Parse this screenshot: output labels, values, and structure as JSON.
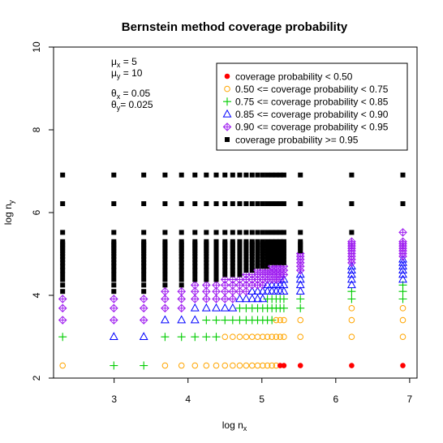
{
  "chart_data": {
    "type": "scatter",
    "title": "Bernstein method coverage probability",
    "xlabel": {
      "main": "log  n",
      "sub": "x"
    },
    "ylabel": {
      "main": "log  n",
      "sub": "y"
    },
    "xlim": [
      2.18,
      7.1
    ],
    "ylim": [
      2.0,
      10.0
    ],
    "xticks": [
      3,
      4,
      5,
      6,
      7
    ],
    "yticks": [
      2,
      4,
      6,
      8,
      10
    ],
    "annotations": [
      {
        "sym": "μ",
        "sub": "x",
        "rest": "  = 5"
      },
      {
        "sym": "μ",
        "sub": "y",
        "rest": "  = 10"
      },
      {
        "sym": "θ",
        "sub": "x",
        "rest": " = 0.05"
      },
      {
        "sym": "θ",
        "sub": "y",
        "rest": "= 0.025"
      }
    ],
    "legend_position": "top-right",
    "categories": [
      {
        "key": "lt050",
        "label": "coverage probability < 0.50",
        "marker": "filled-circle",
        "color": "#ff0000"
      },
      {
        "key": "c050",
        "label": "0.50 <= coverage probability < 0.75",
        "marker": "open-circle",
        "color": "#ffa500"
      },
      {
        "key": "c075",
        "label": "0.75 <= coverage probability < 0.85",
        "marker": "plus",
        "color": "#00cc00"
      },
      {
        "key": "c085",
        "label": "0.85 <= coverage probability < 0.90",
        "marker": "triangle",
        "color": "#0000ff"
      },
      {
        "key": "c090",
        "label": "0.90 <= coverage probability < 0.95",
        "marker": "diamond-plus",
        "color": "#a020f0"
      },
      {
        "key": "ge095",
        "label": "coverage probability >= 0.95",
        "marker": "filled-square",
        "color": "#000000"
      }
    ],
    "x_grid": [
      2.303,
      2.996,
      3.401,
      3.689,
      3.912,
      4.094,
      4.248,
      4.382,
      4.5,
      4.605,
      4.7,
      4.787,
      4.868,
      4.942,
      5.011,
      5.075,
      5.136,
      5.193,
      5.247,
      5.298,
      5.521,
      6.215,
      6.908
    ],
    "y_grid": [
      2.303,
      2.996,
      3.401,
      3.689,
      3.912,
      4.094,
      4.248,
      4.382,
      4.5,
      4.605,
      4.7,
      4.787,
      4.868,
      4.942,
      5.011,
      5.075,
      5.136,
      5.193,
      5.247,
      5.298,
      5.521,
      6.215,
      6.908
    ],
    "series_by_column": [
      {
        "x": 2.303,
        "lt050": [],
        "c050": [
          2.303
        ],
        "c075": [
          2.996
        ],
        "c085": [],
        "c090": [
          3.401,
          3.689,
          3.912
        ],
        "ge095_from": 4.094
      },
      {
        "x": 2.996,
        "lt050": [],
        "c050": [],
        "c075": [
          2.303
        ],
        "c085": [
          2.996
        ],
        "c090": [
          3.401,
          3.689,
          3.912
        ],
        "ge095_from": 4.094
      },
      {
        "x": 3.401,
        "lt050": [],
        "c050": [],
        "c075": [
          2.303
        ],
        "c085": [
          2.996
        ],
        "c090": [
          3.401,
          3.689,
          3.912
        ],
        "ge095_from": 4.094
      },
      {
        "x": 3.689,
        "lt050": [],
        "c050": [
          2.303
        ],
        "c075": [
          2.996
        ],
        "c085": [
          3.401
        ],
        "c090": [
          3.689,
          3.912,
          4.094
        ],
        "ge095_from": 4.248
      },
      {
        "x": 3.912,
        "lt050": [],
        "c050": [
          2.303
        ],
        "c075": [
          2.996
        ],
        "c085": [
          3.401
        ],
        "c090": [
          3.689,
          3.912,
          4.094
        ],
        "ge095_from": 4.248
      },
      {
        "x": 4.094,
        "lt050": [],
        "c050": [
          2.303
        ],
        "c075": [
          2.996
        ],
        "c085": [
          3.401,
          3.689
        ],
        "c090": [
          3.912,
          4.094,
          4.248
        ],
        "ge095_from": 4.382
      },
      {
        "x": 4.248,
        "lt050": [],
        "c050": [
          2.303
        ],
        "c075": [
          2.996,
          3.401
        ],
        "c085": [
          3.689
        ],
        "c090": [
          3.912,
          4.094,
          4.248
        ],
        "ge095_from": 4.382
      },
      {
        "x": 4.382,
        "lt050": [],
        "c050": [
          2.303
        ],
        "c075": [
          2.996,
          3.401
        ],
        "c085": [
          3.689
        ],
        "c090": [
          3.912,
          4.094,
          4.248
        ],
        "ge095_from": 4.382
      },
      {
        "x": 4.5,
        "lt050": [],
        "c050": [
          2.303,
          2.996
        ],
        "c075": [
          3.401
        ],
        "c085": [
          3.689
        ],
        "c090": [
          3.912,
          4.094,
          4.248,
          4.382
        ],
        "ge095_from": 4.5
      },
      {
        "x": 4.605,
        "lt050": [],
        "c050": [
          2.303,
          2.996
        ],
        "c075": [
          3.401
        ],
        "c085": [
          3.689
        ],
        "c090": [
          3.912,
          4.094,
          4.248,
          4.382
        ],
        "ge095_from": 4.5
      },
      {
        "x": 4.7,
        "lt050": [],
        "c050": [
          2.303,
          2.996
        ],
        "c075": [
          3.401,
          3.689
        ],
        "c085": [
          3.912
        ],
        "c090": [
          4.094,
          4.248,
          4.382
        ],
        "ge095_from": 4.5
      },
      {
        "x": 4.787,
        "lt050": [],
        "c050": [
          2.303,
          2.996
        ],
        "c075": [
          3.401,
          3.689
        ],
        "c085": [
          3.912
        ],
        "c090": [
          4.094,
          4.248,
          4.382,
          4.5
        ],
        "ge095_from": 4.605
      },
      {
        "x": 4.868,
        "lt050": [],
        "c050": [
          2.303,
          2.996
        ],
        "c075": [
          3.401,
          3.689
        ],
        "c085": [
          3.912,
          4.094
        ],
        "c090": [
          4.248,
          4.382,
          4.5
        ],
        "ge095_from": 4.605
      },
      {
        "x": 4.942,
        "lt050": [],
        "c050": [
          2.303,
          2.996
        ],
        "c075": [
          3.401,
          3.689
        ],
        "c085": [
          3.912,
          4.094
        ],
        "c090": [
          4.248,
          4.382,
          4.5,
          4.605
        ],
        "ge095_from": 4.7
      },
      {
        "x": 5.011,
        "lt050": [],
        "c050": [
          2.303,
          2.996
        ],
        "c075": [
          3.401,
          3.689
        ],
        "c085": [
          3.912,
          4.094
        ],
        "c090": [
          4.248,
          4.382,
          4.5,
          4.605
        ],
        "ge095_from": 4.7
      },
      {
        "x": 5.075,
        "lt050": [],
        "c050": [
          2.303,
          2.996
        ],
        "c075": [
          3.401,
          3.689,
          3.912
        ],
        "c085": [
          4.094,
          4.248
        ],
        "c090": [
          4.382,
          4.5,
          4.605
        ],
        "ge095_from": 4.7
      },
      {
        "x": 5.136,
        "lt050": [],
        "c050": [
          2.303,
          2.996
        ],
        "c075": [
          3.401,
          3.689,
          3.912
        ],
        "c085": [
          4.094,
          4.248
        ],
        "c090": [
          4.382,
          4.5,
          4.605,
          4.7
        ],
        "ge095_from": 4.787
      },
      {
        "x": 5.193,
        "lt050": [],
        "c050": [
          2.303,
          2.996,
          3.401
        ],
        "c075": [
          3.689,
          3.912
        ],
        "c085": [
          4.094,
          4.248
        ],
        "c090": [
          4.382,
          4.5,
          4.605,
          4.7
        ],
        "ge095_from": 4.787
      },
      {
        "x": 5.247,
        "lt050": [
          2.303
        ],
        "c050": [
          2.996,
          3.401
        ],
        "c075": [
          3.689,
          3.912
        ],
        "c085": [
          4.094,
          4.248
        ],
        "c090": [
          4.382,
          4.5,
          4.605,
          4.7
        ],
        "ge095_from": 4.787
      },
      {
        "x": 5.298,
        "lt050": [
          2.303
        ],
        "c050": [
          2.996,
          3.401
        ],
        "c075": [
          3.689,
          3.912
        ],
        "c085": [
          4.094,
          4.248,
          4.382
        ],
        "c090": [
          4.5,
          4.605,
          4.7
        ],
        "ge095_from": 4.787
      },
      {
        "x": 5.521,
        "lt050": [
          2.303
        ],
        "c050": [
          2.996,
          3.401
        ],
        "c075": [
          3.689,
          3.912
        ],
        "c085": [
          4.094,
          4.248,
          4.382,
          4.5
        ],
        "c090": [
          4.605,
          4.7,
          4.787,
          4.868,
          4.942,
          5.011
        ],
        "ge095_from": 5.075
      },
      {
        "x": 6.215,
        "lt050": [
          2.303
        ],
        "c050": [
          2.996,
          3.401,
          3.689
        ],
        "c075": [
          3.912,
          4.094
        ],
        "c085": [
          4.248,
          4.382,
          4.5,
          4.605,
          4.7
        ],
        "c090": [
          4.787,
          4.868,
          4.942,
          5.011,
          5.075,
          5.136,
          5.193,
          5.247,
          5.298
        ],
        "ge095_from": 5.521
      },
      {
        "x": 6.908,
        "lt050": [
          2.303
        ],
        "c050": [
          2.996,
          3.401,
          3.689
        ],
        "c075": [
          3.912,
          4.094,
          4.248
        ],
        "c085": [
          4.382,
          4.5,
          4.605,
          4.7,
          4.787,
          4.868
        ],
        "c090": [
          4.942,
          5.011,
          5.075,
          5.136,
          5.193,
          5.247,
          5.298,
          5.521
        ],
        "ge095_from": 6.215
      }
    ]
  }
}
